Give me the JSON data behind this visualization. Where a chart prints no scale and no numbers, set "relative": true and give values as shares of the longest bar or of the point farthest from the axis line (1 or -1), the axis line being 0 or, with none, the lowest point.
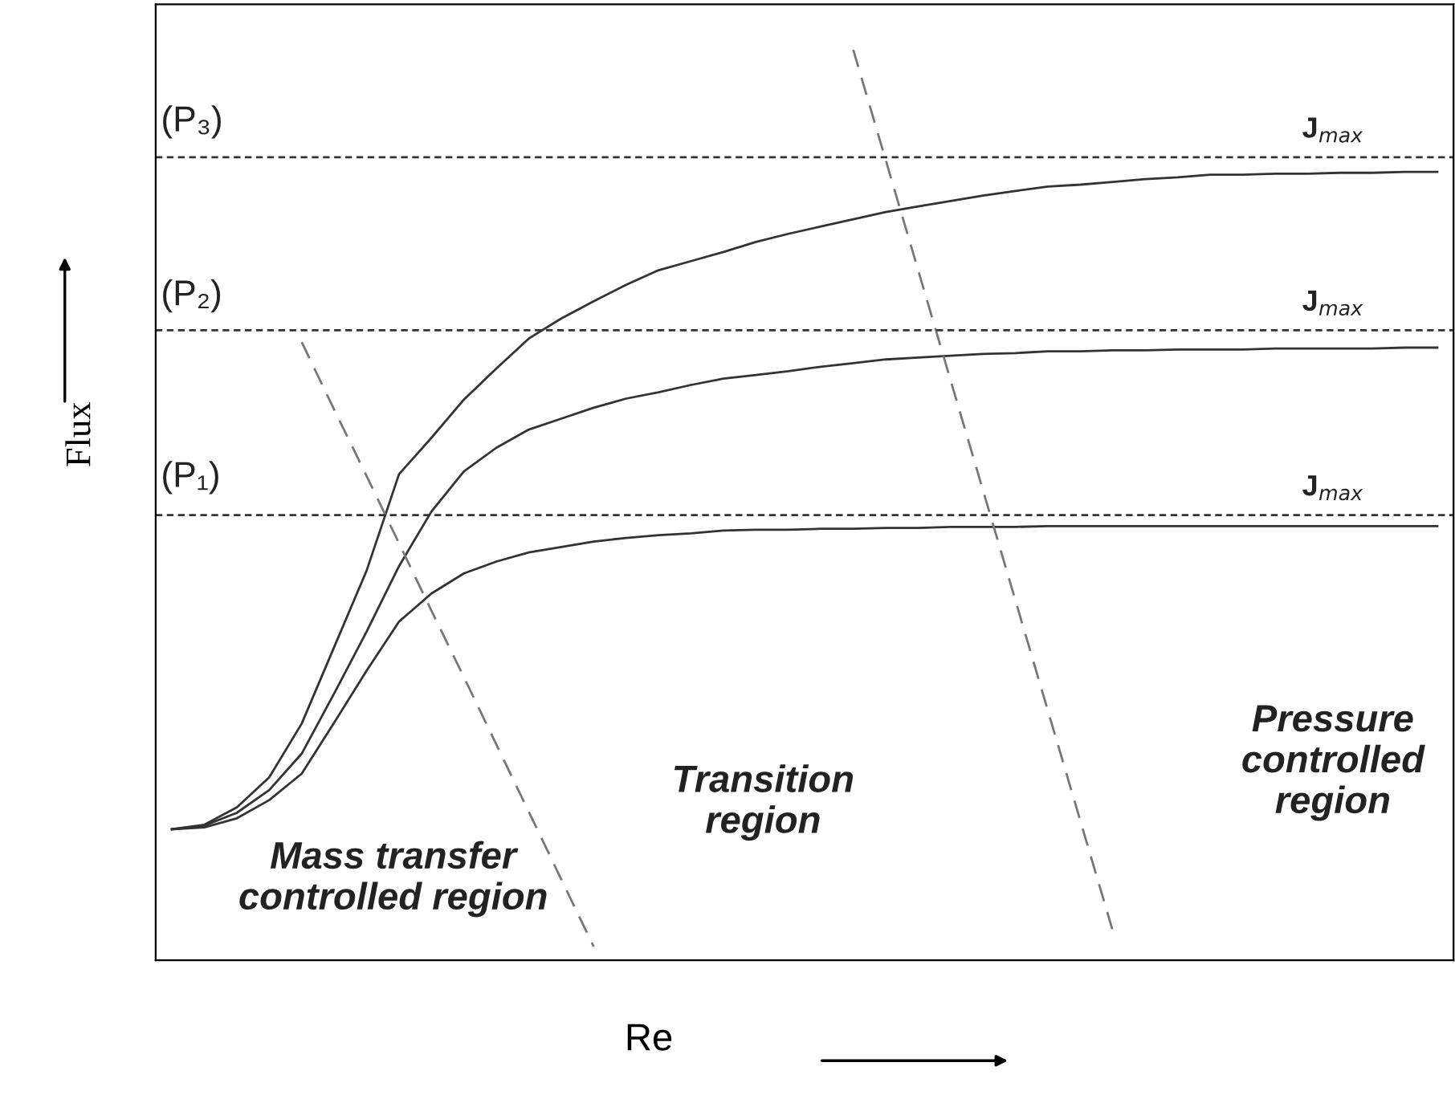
{
  "chart_data": {
    "type": "line",
    "relative": true,
    "xlabel": "Re",
    "ylabel": "Flux",
    "tick_labels": false,
    "grid": false,
    "legend": false,
    "categories": [
      null,
      null,
      null,
      null,
      null,
      null,
      null,
      null,
      null,
      null,
      null,
      null,
      null,
      null,
      null,
      null,
      null,
      null,
      null,
      null,
      null,
      null,
      null,
      null,
      null,
      null,
      null,
      null,
      null,
      null,
      null,
      null,
      null,
      null,
      null,
      null,
      null,
      null,
      null,
      null
    ],
    "series": [
      {
        "color": "#333333",
        "values": [
          0.144,
          0.146,
          0.156,
          0.176,
          0.205,
          0.261,
          0.318,
          0.372,
          0.403,
          0.425,
          0.438,
          0.448,
          0.454,
          0.46,
          0.464,
          0.467,
          0.469,
          0.472,
          0.473,
          0.473,
          0.474,
          0.474,
          0.475,
          0.475,
          0.476,
          0.476,
          0.476,
          0.477,
          0.477,
          0.477,
          0.477,
          0.477,
          0.477,
          0.477,
          0.477,
          0.477,
          0.477,
          0.477,
          0.477,
          0.477
        ]
      },
      {
        "color": "#333333",
        "values": [
          0.144,
          0.148,
          0.162,
          0.187,
          0.227,
          0.293,
          0.361,
          0.433,
          0.493,
          0.537,
          0.563,
          0.583,
          0.595,
          0.607,
          0.617,
          0.624,
          0.632,
          0.639,
          0.643,
          0.647,
          0.652,
          0.656,
          0.66,
          0.662,
          0.664,
          0.666,
          0.667,
          0.669,
          0.669,
          0.67,
          0.67,
          0.671,
          0.671,
          0.671,
          0.672,
          0.672,
          0.672,
          0.672,
          0.673,
          0.673
        ]
      },
      {
        "color": "#333333",
        "values": [
          0.144,
          0.149,
          0.168,
          0.201,
          0.26,
          0.344,
          0.428,
          0.534,
          0.574,
          0.616,
          0.65,
          0.683,
          0.705,
          0.724,
          0.742,
          0.758,
          0.768,
          0.778,
          0.789,
          0.798,
          0.806,
          0.814,
          0.822,
          0.828,
          0.834,
          0.84,
          0.845,
          0.85,
          0.852,
          0.855,
          0.858,
          0.86,
          0.863,
          0.863,
          0.864,
          0.864,
          0.865,
          0.865,
          0.866,
          0.866
        ]
      },
      {
        "color": "#777777",
        "line_style": "dashed",
        "values": [
          null,
          null,
          null,
          null,
          0.679,
          0.605,
          0.532,
          0.458,
          0.384,
          0.311,
          0.237,
          0.163,
          0.089,
          0.015,
          null,
          null,
          null,
          null,
          null,
          null,
          null,
          null,
          null,
          null,
          null,
          null,
          null,
          null,
          null,
          null,
          null,
          null,
          null,
          null,
          null,
          null,
          null,
          null,
          null,
          null
        ]
      },
      {
        "color": "#777777",
        "line_style": "dashed",
        "values": [
          null,
          null,
          null,
          null,
          null,
          null,
          null,
          null,
          null,
          null,
          null,
          null,
          null,
          null,
          null,
          null,
          null,
          null,
          null,
          null,
          null,
          1.0,
          0.879,
          0.758,
          0.637,
          0.516,
          0.395,
          0.274,
          0.153,
          0.032,
          null,
          null,
          null,
          null,
          null,
          null,
          null,
          null,
          null,
          null
        ]
      }
    ],
    "ref_lines": [
      {
        "axis": "y",
        "value": 0.489,
        "label": "J$_{max}$",
        "color": "#333333",
        "line_style": "dotted"
      },
      {
        "axis": "y",
        "value": 0.692,
        "label": "J$_{max}$",
        "color": "#333333",
        "line_style": "dotted"
      },
      {
        "axis": "y",
        "value": 0.882,
        "label": "J$_{max}$",
        "color": "#333333",
        "line_style": "dotted"
      }
    ],
    "annotations": [
      "(P₁)",
      "(P₂)",
      "(P₃)",
      "Mass transfer\ncontrolled region",
      "Transition\nregion",
      "Pressure\ncontrolled\nregion"
    ]
  }
}
